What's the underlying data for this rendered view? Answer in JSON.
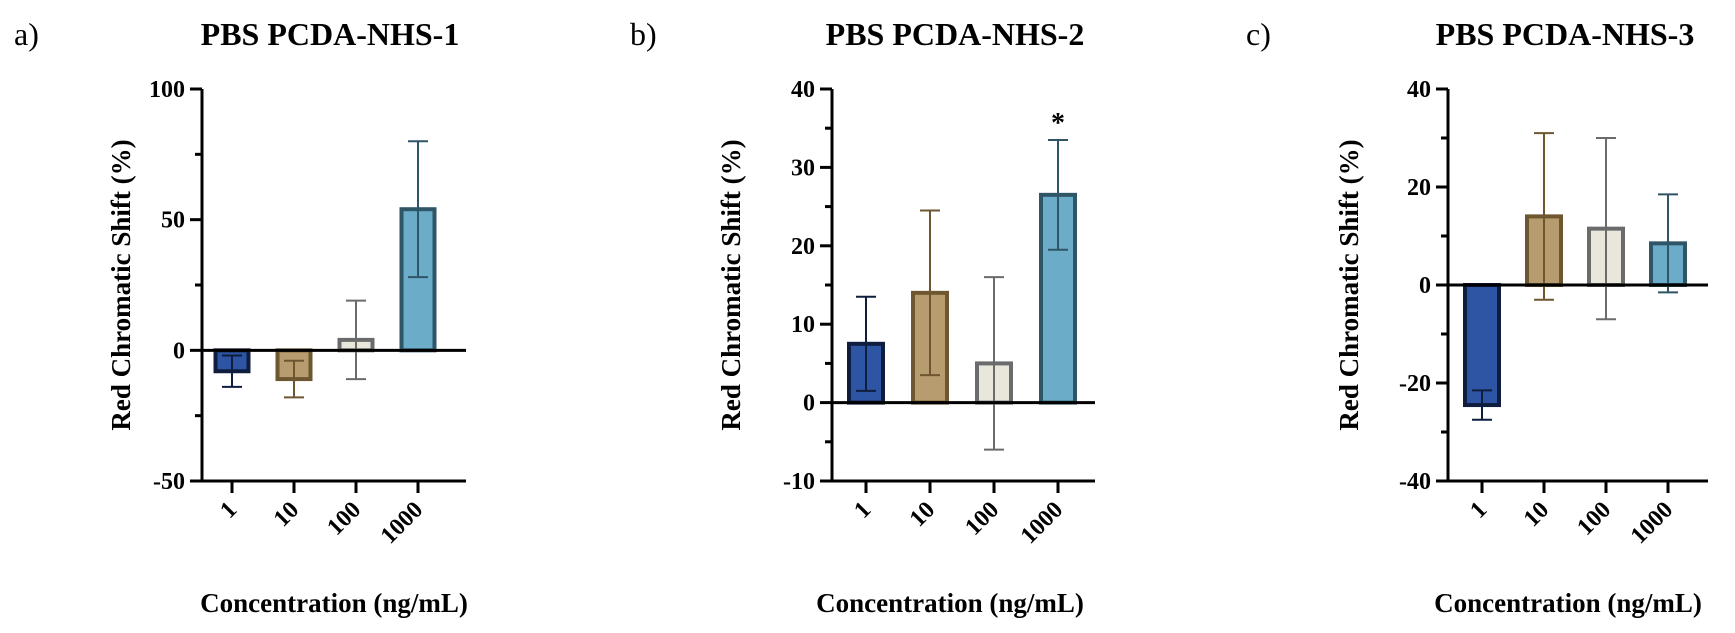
{
  "figure": {
    "xlabel": "Concentration (ng/mL)",
    "ylabel": "Red Chromatic Shift (%)"
  },
  "chart_data": [
    {
      "type": "bar",
      "panel": "a)",
      "title": "PBS PCDA-NHS-1",
      "xlabel": "Concentration (ng/mL)",
      "ylabel": "Red Chromatic Shift (%)",
      "categories": [
        "1",
        "10",
        "100",
        "1000"
      ],
      "values": [
        -8,
        -11,
        4,
        54
      ],
      "errors": [
        6,
        7,
        15,
        26
      ],
      "ylim": [
        -50,
        100
      ],
      "yticks": [
        -50,
        0,
        50,
        100
      ],
      "yticklabels": [
        "-50",
        "0",
        "50",
        "100"
      ],
      "annotations": []
    },
    {
      "type": "bar",
      "panel": "b)",
      "title": "PBS PCDA-NHS-2",
      "xlabel": "Concentration (ng/mL)",
      "ylabel": "Red Chromatic Shift (%)",
      "categories": [
        "1",
        "10",
        "100",
        "1000"
      ],
      "values": [
        7.5,
        14,
        5,
        26.5
      ],
      "errors": [
        6,
        10.5,
        11,
        7
      ],
      "ylim": [
        -10,
        40
      ],
      "yticks": [
        -10,
        0,
        10,
        20,
        30,
        40
      ],
      "yticklabels": [
        "-10",
        "0",
        "10",
        "20",
        "30",
        "40"
      ],
      "annotations": [
        {
          "category": "1000",
          "text": "*"
        }
      ]
    },
    {
      "type": "bar",
      "panel": "c)",
      "title": "PBS PCDA-NHS-3",
      "xlabel": "Concentration (ng/mL)",
      "ylabel": "Red Chromatic Shift (%)",
      "categories": [
        "1",
        "10",
        "100",
        "1000"
      ],
      "values": [
        -24.5,
        14,
        11.5,
        8.5
      ],
      "errors": [
        3,
        17,
        18.5,
        10
      ],
      "ylim": [
        -40,
        40
      ],
      "yticks": [
        -40,
        -20,
        0,
        20,
        40
      ],
      "yticklabels": [
        "-40",
        "-20",
        "0",
        "20",
        "40"
      ],
      "annotations": []
    }
  ],
  "colors": {
    "fills": [
      "#2e55a3",
      "#b69c6e",
      "#e9e6dc",
      "#6badc9"
    ],
    "strokes": [
      "#0f1d3e",
      "#6e5730",
      "#6b6b6b",
      "#2f5566"
    ]
  }
}
